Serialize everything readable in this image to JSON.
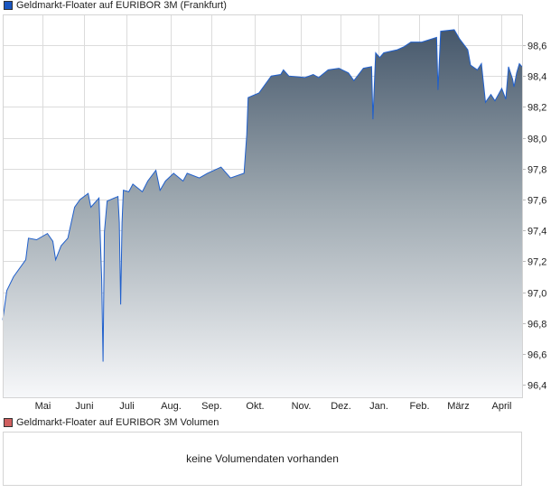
{
  "legend_price": {
    "label": "Geldmarkt-Floater auf EURIBOR 3M (Frankfurt)",
    "color": "#1a56c0"
  },
  "legend_volume": {
    "label": "Geldmarkt-Floater auf EURIBOR 3M Volumen",
    "color": "#d06060"
  },
  "volume_message": "keine Volumendaten vorhanden",
  "colors": {
    "line": "#1f5fcc",
    "fill_top": "#44566a",
    "fill_bottom": "#f7f8fa",
    "grid": "#dcdcdc"
  },
  "chart_data": {
    "type": "area",
    "title": "Geldmarkt-Floater auf EURIBOR 3M (Frankfurt)",
    "xlabel": "",
    "ylabel": "",
    "x_unit": "days since start",
    "xlim": [
      0,
      383
    ],
    "ylim": [
      96.32,
      98.8
    ],
    "grid": true,
    "legend_placement": "top-left",
    "x_ticks": [
      {
        "day": 29,
        "label": "Mai"
      },
      {
        "day": 60,
        "label": "Juni"
      },
      {
        "day": 91,
        "label": "Juli"
      },
      {
        "day": 124,
        "label": "Aug."
      },
      {
        "day": 154,
        "label": "Sep."
      },
      {
        "day": 186,
        "label": "Okt."
      },
      {
        "day": 220,
        "label": "Nov."
      },
      {
        "day": 249,
        "label": "Dez."
      },
      {
        "day": 277,
        "label": "Jan."
      },
      {
        "day": 307,
        "label": "Feb."
      },
      {
        "day": 336,
        "label": "März"
      },
      {
        "day": 368,
        "label": "April"
      }
    ],
    "y_ticks": [
      {
        "value": 98.6,
        "label": "98,6"
      },
      {
        "value": 98.4,
        "label": "98,4"
      },
      {
        "value": 98.2,
        "label": "98,2"
      },
      {
        "value": 98.0,
        "label": "98,0"
      },
      {
        "value": 97.8,
        "label": "97,8"
      },
      {
        "value": 97.6,
        "label": "97,6"
      },
      {
        "value": 97.4,
        "label": "97,4"
      },
      {
        "value": 97.2,
        "label": "97,2"
      },
      {
        "value": 97.0,
        "label": "97,0"
      },
      {
        "value": 96.8,
        "label": "96,8"
      },
      {
        "value": 96.6,
        "label": "96,6"
      },
      {
        "value": 96.4,
        "label": "96,4"
      }
    ],
    "series": [
      {
        "name": "Geldmarkt-Floater auf EURIBOR 3M (Frankfurt)",
        "points": [
          [
            0,
            96.82
          ],
          [
            3,
            97.01
          ],
          [
            8,
            97.1
          ],
          [
            17,
            97.21
          ],
          [
            19,
            97.35
          ],
          [
            25,
            97.34
          ],
          [
            33,
            97.38
          ],
          [
            37,
            97.33
          ],
          [
            39,
            97.21
          ],
          [
            43,
            97.3
          ],
          [
            48,
            97.35
          ],
          [
            51,
            97.47
          ],
          [
            53,
            97.55
          ],
          [
            57,
            97.6
          ],
          [
            63,
            97.64
          ],
          [
            65,
            97.55
          ],
          [
            71,
            97.61
          ],
          [
            73,
            97.08
          ],
          [
            74,
            96.55
          ],
          [
            75,
            97.39
          ],
          [
            77,
            97.59
          ],
          [
            85,
            97.62
          ],
          [
            86,
            97.45
          ],
          [
            87,
            96.92
          ],
          [
            88,
            97.45
          ],
          [
            89,
            97.66
          ],
          [
            93,
            97.65
          ],
          [
            96,
            97.7
          ],
          [
            103,
            97.65
          ],
          [
            107,
            97.72
          ],
          [
            113,
            97.79
          ],
          [
            116,
            97.66
          ],
          [
            120,
            97.72
          ],
          [
            126,
            97.77
          ],
          [
            133,
            97.72
          ],
          [
            136,
            97.77
          ],
          [
            145,
            97.74
          ],
          [
            151,
            97.77
          ],
          [
            161,
            97.81
          ],
          [
            168,
            97.74
          ],
          [
            178,
            97.77
          ],
          [
            180,
            98.02
          ],
          [
            181,
            98.26
          ],
          [
            189,
            98.29
          ],
          [
            198,
            98.4
          ],
          [
            205,
            98.41
          ],
          [
            207,
            98.44
          ],
          [
            211,
            98.4
          ],
          [
            223,
            98.39
          ],
          [
            229,
            98.41
          ],
          [
            233,
            98.39
          ],
          [
            240,
            98.44
          ],
          [
            248,
            98.45
          ],
          [
            255,
            98.42
          ],
          [
            259,
            98.37
          ],
          [
            266,
            98.45
          ],
          [
            272,
            98.46
          ],
          [
            273,
            98.12
          ],
          [
            275,
            98.55
          ],
          [
            278,
            98.52
          ],
          [
            281,
            98.55
          ],
          [
            291,
            98.57
          ],
          [
            296,
            98.59
          ],
          [
            301,
            98.62
          ],
          [
            309,
            98.62
          ],
          [
            320,
            98.65
          ],
          [
            321,
            98.31
          ],
          [
            323,
            98.69
          ],
          [
            333,
            98.7
          ],
          [
            337,
            98.64
          ],
          [
            343,
            98.57
          ],
          [
            345,
            98.47
          ],
          [
            350,
            98.44
          ],
          [
            353,
            98.48
          ],
          [
            356,
            98.23
          ],
          [
            360,
            98.28
          ],
          [
            363,
            98.24
          ],
          [
            368,
            98.32
          ],
          [
            371,
            98.25
          ],
          [
            373,
            98.46
          ],
          [
            376,
            98.38
          ],
          [
            377,
            98.33
          ],
          [
            379,
            98.42
          ],
          [
            381,
            98.48
          ],
          [
            383,
            98.46
          ]
        ]
      }
    ]
  }
}
